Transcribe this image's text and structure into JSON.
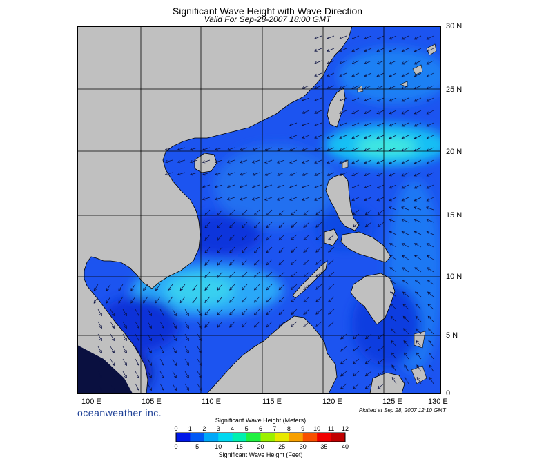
{
  "title": "Significant Wave Height with Wave Direction",
  "subtitle": "Valid For Sep-28-2007 18:00 GMT",
  "lat_labels": [
    "30 N",
    "25 N",
    "20 N",
    "15 N",
    "10 N",
    "5 N",
    "0"
  ],
  "lon_labels": [
    "100 E",
    "105 E",
    "110 E",
    "115 E",
    "120 E",
    "125 E",
    "130 E"
  ],
  "brand": "oceanweather inc.",
  "plotted": "Plotted at Sep 28, 2007 12:10 GMT",
  "colorbar": {
    "title_top": "Significant Wave Height (Meters)",
    "title_bottom": "Significant Wave Height (Feet)",
    "meters": [
      "0",
      "1",
      "2",
      "3",
      "4",
      "5",
      "6",
      "7",
      "8",
      "9",
      "10",
      "11",
      "12"
    ],
    "feet": [
      "0",
      "5",
      "10",
      "15",
      "20",
      "25",
      "30",
      "35",
      "40"
    ],
    "colors": [
      "#0018e8",
      "#0058f4",
      "#00a8f8",
      "#00d8f0",
      "#00f0b0",
      "#20f040",
      "#9cf000",
      "#e8e800",
      "#f8a000",
      "#f85000",
      "#f00000",
      "#c00000"
    ]
  },
  "colors": {
    "land": "#c0c0c0",
    "sea_base": "#1c54f0",
    "sea_deep": "#0a2cd8",
    "sea_high": "#18d0f4",
    "sea_mid": "#2890f8"
  }
}
